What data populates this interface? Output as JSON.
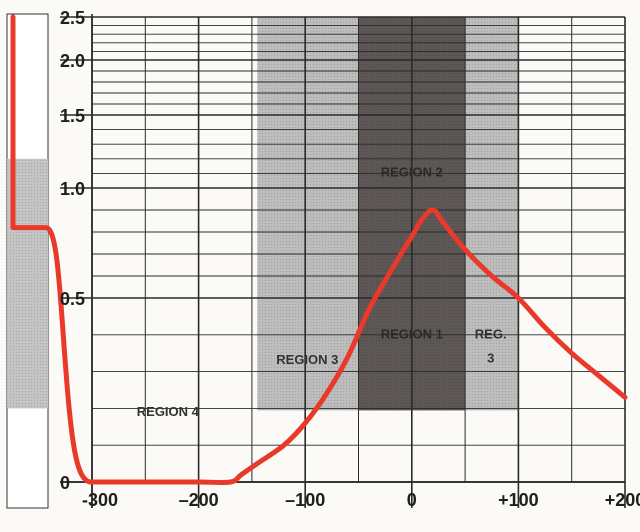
{
  "chart_data": {
    "type": "line",
    "xlabel": "",
    "ylabel": "",
    "xlim": [
      -300,
      200
    ],
    "y_ticks": [
      {
        "value": 0,
        "label": "0"
      },
      {
        "value": 0.5,
        "label": "0.5"
      },
      {
        "value": 1.0,
        "label": "1.0"
      },
      {
        "value": 1.5,
        "label": "1.5"
      },
      {
        "value": 2.0,
        "label": "2.0"
      },
      {
        "value": 2.5,
        "label": "2.5"
      }
    ],
    "x_ticks": [
      {
        "value": -300,
        "label": "-300"
      },
      {
        "value": -200,
        "label": "–200"
      },
      {
        "value": -100,
        "label": "–100"
      },
      {
        "value": 0,
        "label": "0"
      },
      {
        "value": 100,
        "label": "+100"
      },
      {
        "value": 200,
        "label": "+200"
      }
    ],
    "regions": [
      {
        "name": "REGION 4",
        "x_from": -300,
        "x_to": -145,
        "shade": "none"
      },
      {
        "name": "REGION 3",
        "x_from": -145,
        "x_to": -50,
        "shade": "light"
      },
      {
        "name": "REGION 2",
        "x_from": -50,
        "x_to": 50,
        "shade": "dark"
      },
      {
        "name": "REGION 1",
        "x_from": -50,
        "x_to": 50,
        "shade": "dark"
      },
      {
        "name": "REG. 3",
        "x_from": 50,
        "x_to": 100,
        "shade": "light"
      }
    ],
    "series": [
      {
        "color": "#e8392a",
        "points": [
          [
            -300,
            0
          ],
          [
            -250,
            0
          ],
          [
            -200,
            0
          ],
          [
            -170,
            0
          ],
          [
            -160,
            0.02
          ],
          [
            -145,
            0.05
          ],
          [
            -120,
            0.1
          ],
          [
            -100,
            0.16
          ],
          [
            -80,
            0.24
          ],
          [
            -60,
            0.34
          ],
          [
            -40,
            0.47
          ],
          [
            -20,
            0.62
          ],
          [
            0,
            0.78
          ],
          [
            10,
            0.86
          ],
          [
            20,
            0.9
          ],
          [
            30,
            0.84
          ],
          [
            50,
            0.72
          ],
          [
            75,
            0.6
          ],
          [
            100,
            0.5
          ],
          [
            125,
            0.42
          ],
          [
            150,
            0.35
          ],
          [
            175,
            0.29
          ],
          [
            200,
            0.23
          ]
        ]
      }
    ]
  },
  "left_strip": {
    "shade_band_values": [
      0.2,
      1.2
    ],
    "step_values": [
      2.5,
      0.82,
      0
    ]
  },
  "colors": {
    "curve": "#e8392a",
    "grid": "#2a2a2a",
    "light_region": "#bdbdbd",
    "dark_region": "#5d5756",
    "strip_shade": "#c4c4c4"
  }
}
